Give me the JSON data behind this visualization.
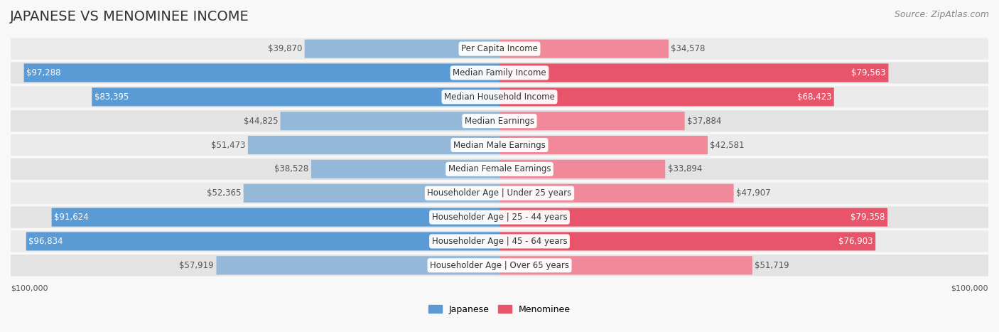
{
  "title": "JAPANESE VS MENOMINEE INCOME",
  "source": "Source: ZipAtlas.com",
  "max_value": 100000,
  "categories": [
    "Per Capita Income",
    "Median Family Income",
    "Median Household Income",
    "Median Earnings",
    "Median Male Earnings",
    "Median Female Earnings",
    "Householder Age | Under 25 years",
    "Householder Age | 25 - 44 years",
    "Householder Age | 45 - 64 years",
    "Householder Age | Over 65 years"
  ],
  "japanese_values": [
    39870,
    97288,
    83395,
    44825,
    51473,
    38528,
    52365,
    91624,
    96834,
    57919
  ],
  "menominee_values": [
    34578,
    79563,
    68423,
    37884,
    42581,
    33894,
    47907,
    79358,
    76903,
    51719
  ],
  "japanese_labels": [
    "$39,870",
    "$97,288",
    "$83,395",
    "$44,825",
    "$51,473",
    "$38,528",
    "$52,365",
    "$91,624",
    "$96,834",
    "$57,919"
  ],
  "menominee_labels": [
    "$34,578",
    "$79,563",
    "$68,423",
    "$37,884",
    "$42,581",
    "$33,894",
    "$47,907",
    "$79,358",
    "$76,903",
    "$51,719"
  ],
  "japanese_color_bar": "#94b8d8",
  "menominee_color_bar": "#f0899a",
  "japanese_color_solid": "#5b9bd5",
  "menominee_color_solid": "#e8546a",
  "bg_color": "#f5f5f5",
  "row_bg_light": "#eeeeee",
  "row_bg_dark": "#e0e0e0",
  "label_box_color": "#ffffff",
  "title_fontsize": 14,
  "source_fontsize": 9,
  "bar_label_fontsize": 8.5,
  "category_fontsize": 8.5
}
